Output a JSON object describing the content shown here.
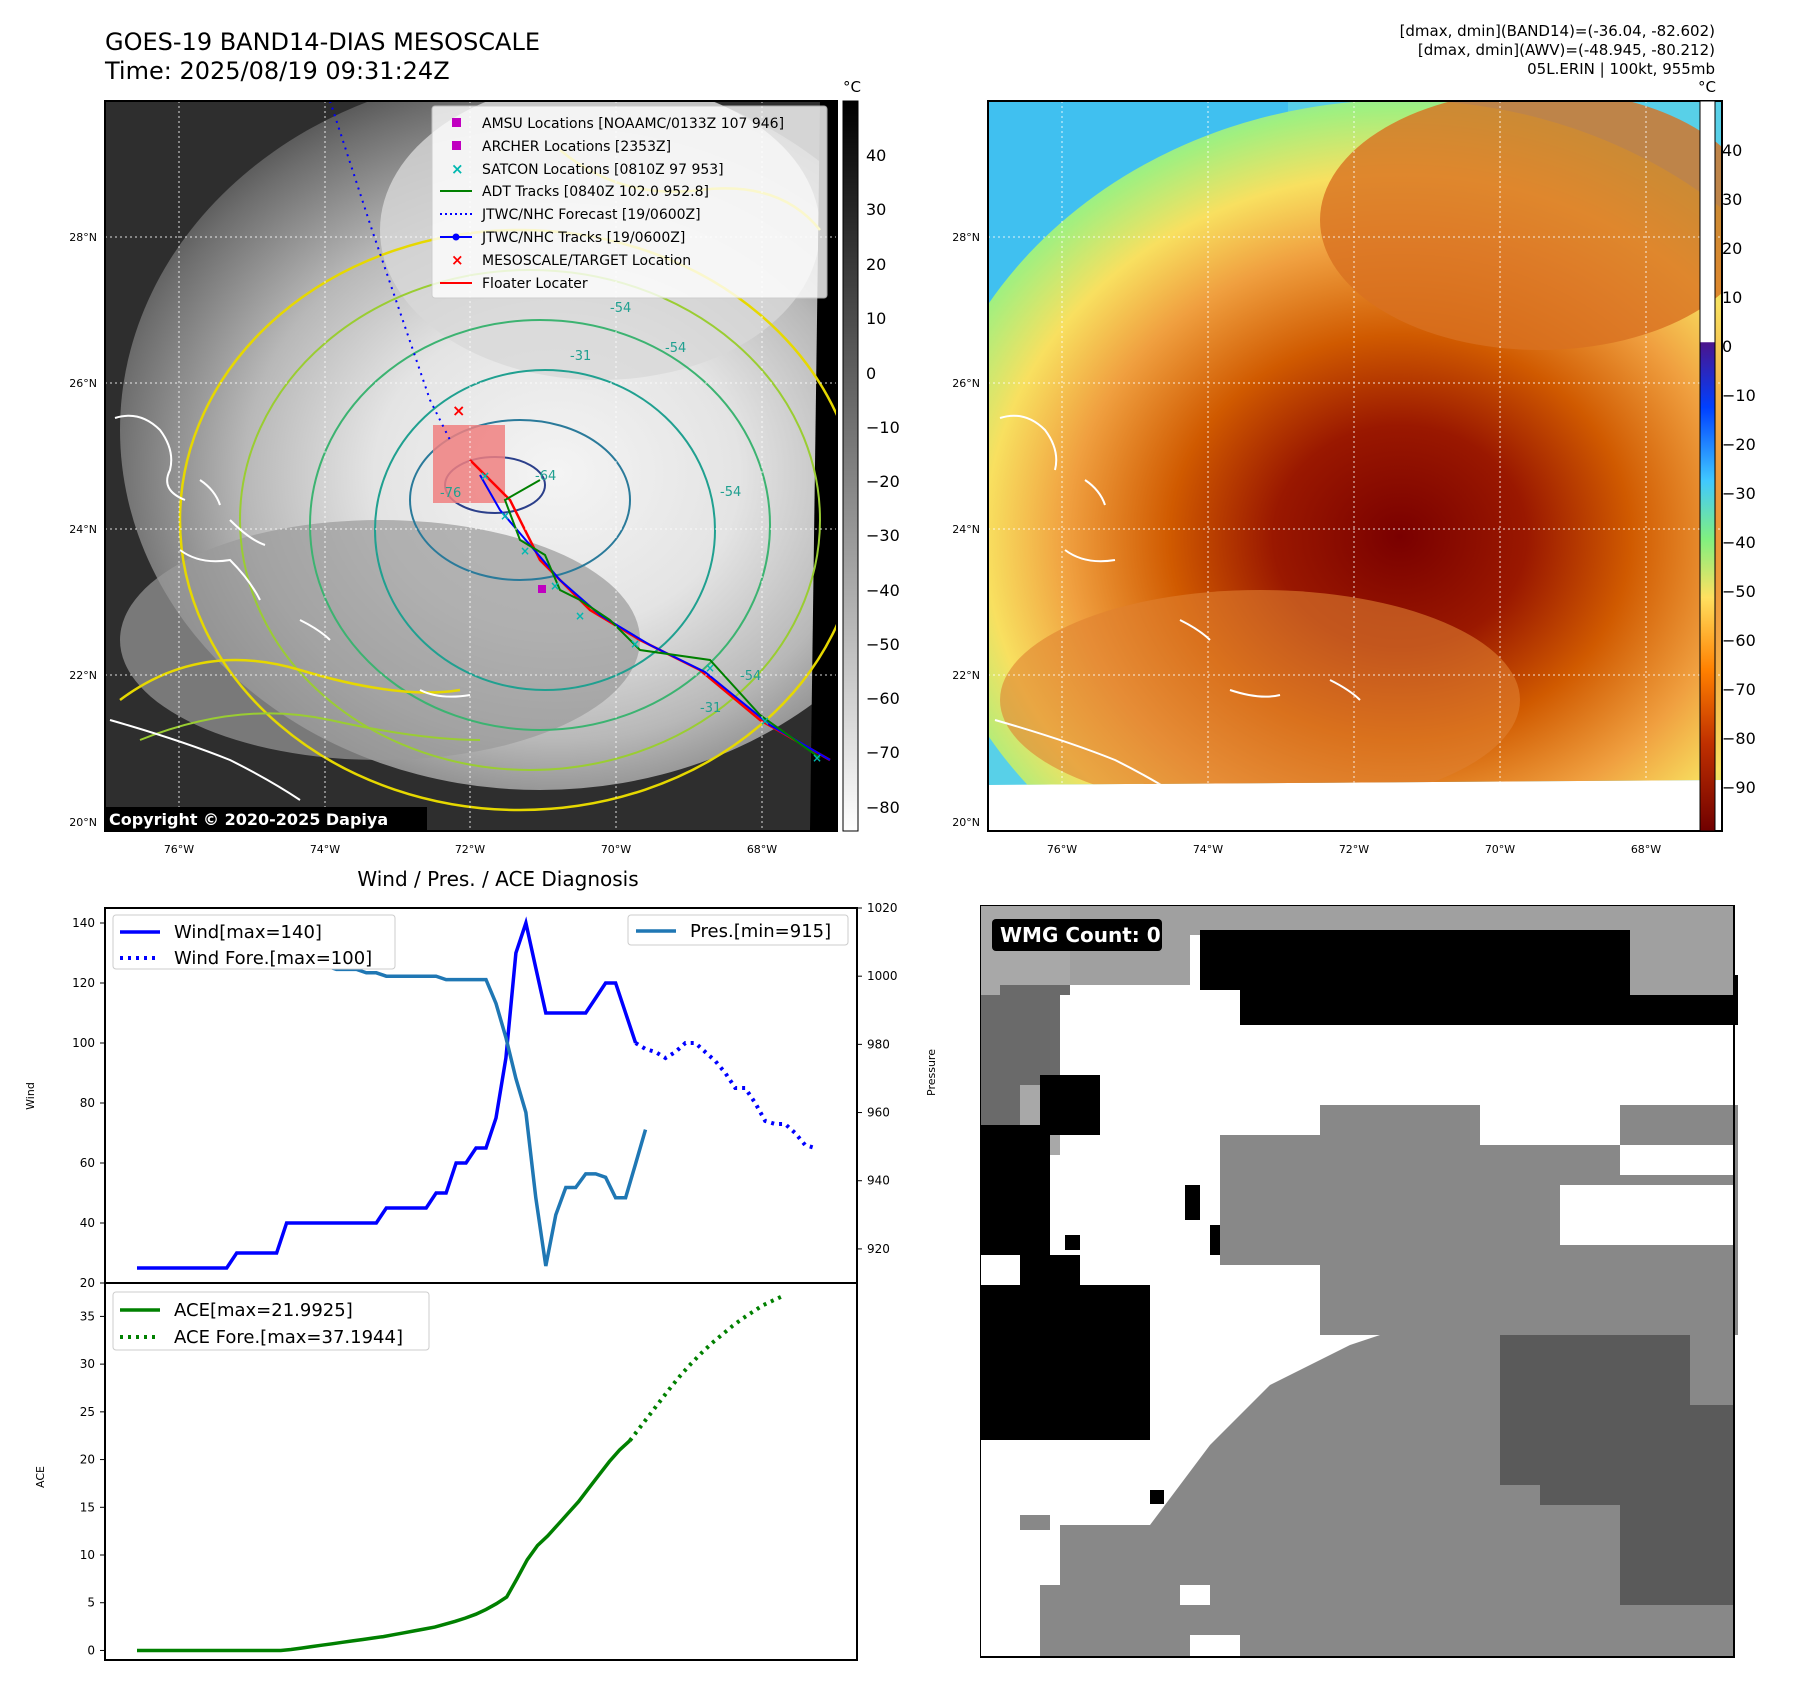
{
  "header": {
    "title_line1": "GOES-19 BAND14-DIAS MESOSCALE",
    "title_line2": "Time: 2025/08/19 09:31:24Z",
    "info_line1": "[dmax, dmin](BAND14)=(-36.04, -82.602)",
    "info_line2": "[dmax, dmin](AWV)=(-48.945, -80.212)",
    "info_line3": "05L.ERIN | 100kt, 955mb"
  },
  "map_left": {
    "unit": "°C",
    "copyright": "Copyright © 2020-2025 Dapiya",
    "lat_labels": [
      "28°N",
      "26°N",
      "24°N",
      "22°N",
      "20°N"
    ],
    "lon_labels": [
      "76°W",
      "74°W",
      "72°W",
      "70°W",
      "68°W"
    ],
    "colorbar_ticks": [
      "40",
      "30",
      "20",
      "10",
      "0",
      "−10",
      "−20",
      "−30",
      "−40",
      "−50",
      "−60",
      "−70",
      "−80"
    ],
    "contour_labels": [
      "-54",
      "-31",
      "-54",
      "-54",
      "-76",
      "-64",
      "-54",
      "-31"
    ],
    "legend": [
      {
        "label": "AMSU Locations [NOAAMC/0133Z 107 946]",
        "color": "#c000c0",
        "marker": "square"
      },
      {
        "label": "ARCHER Locations [2353Z]",
        "color": "#c000c0",
        "marker": "square"
      },
      {
        "label": "SATCON Locations [0810Z 97 953]",
        "color": "#00b8b0",
        "marker": "x"
      },
      {
        "label": "ADT Tracks [0840Z 102.0 952.8]",
        "color": "#008000",
        "marker": "line"
      },
      {
        "label": "JTWC/NHC Forecast [19/0600Z]",
        "color": "#0000ff",
        "marker": "dotted"
      },
      {
        "label": "JTWC/NHC Tracks [19/0600Z]",
        "color": "#0000ff",
        "marker": "line-dot"
      },
      {
        "label": "MESOSCALE/TARGET Location",
        "color": "#ff0000",
        "marker": "x"
      },
      {
        "label": "Floater Locater",
        "color": "#ff0000",
        "marker": "line"
      }
    ]
  },
  "map_right": {
    "unit": "°C",
    "lat_labels": [
      "28°N",
      "26°N",
      "24°N",
      "22°N",
      "20°N"
    ],
    "lon_labels": [
      "76°W",
      "74°W",
      "72°W",
      "70°W",
      "68°W"
    ],
    "colorbar_ticks": [
      "40",
      "30",
      "20",
      "10",
      "0",
      "−10",
      "−20",
      "−30",
      "−40",
      "−50",
      "−60",
      "−70",
      "−80",
      "−90"
    ]
  },
  "wmg": {
    "label": "WMG Count: 0"
  },
  "chart_data": [
    {
      "type": "line",
      "title": "Wind / Pres. / ACE Diagnosis",
      "ylabel": "Wind",
      "y2label": "Pressure",
      "ylim": [
        20,
        145
      ],
      "y2lim": [
        910,
        1020
      ],
      "yticks": [
        20,
        40,
        60,
        80,
        100,
        120,
        140
      ],
      "y2ticks": [
        920,
        940,
        960,
        980,
        1000,
        1020
      ],
      "legend_left": [
        "Wind[max=140]",
        "Wind Fore.[max=100]"
      ],
      "legend_right": [
        "Pres.[min=915]"
      ],
      "series": [
        {
          "name": "Wind[max=140]",
          "color": "#0000ff",
          "style": "solid",
          "axis": "left",
          "values": [
            25,
            25,
            25,
            25,
            25,
            25,
            25,
            25,
            25,
            25,
            30,
            30,
            30,
            30,
            30,
            40,
            40,
            40,
            40,
            40,
            40,
            40,
            40,
            40,
            40,
            45,
            45,
            45,
            45,
            45,
            50,
            50,
            60,
            60,
            65,
            65,
            75,
            95,
            130,
            140,
            125,
            110,
            110,
            110,
            110,
            110,
            115,
            120,
            120,
            110,
            100
          ]
        },
        {
          "name": "Wind Fore.[max=100]",
          "color": "#0000ff",
          "style": "dotted",
          "axis": "left",
          "start_index": 50,
          "values": [
            100,
            98,
            97,
            95,
            97,
            100,
            100,
            97,
            94,
            90,
            85,
            85,
            80,
            74,
            73,
            73,
            70,
            66,
            65
          ]
        },
        {
          "name": "Pres.[min=915]",
          "color": "#1f77b4",
          "style": "solid",
          "axis": "right",
          "values": [
            1012,
            1012,
            1012,
            1008,
            1008,
            1007,
            1007,
            1006,
            1006,
            1006,
            1006,
            1006,
            1005,
            1004,
            1004,
            1004,
            1004,
            1004,
            1003,
            1003,
            1002,
            1002,
            1002,
            1001,
            1001,
            1000,
            1000,
            1000,
            1000,
            1000,
            1000,
            999,
            999,
            999,
            999,
            999,
            992,
            982,
            970,
            960,
            935,
            915,
            930,
            938,
            938,
            942,
            942,
            941,
            935,
            935,
            945,
            955
          ]
        }
      ]
    },
    {
      "type": "line",
      "ylabel": "ACE",
      "ylim": [
        -1,
        38.5
      ],
      "yticks": [
        0,
        5,
        10,
        15,
        20,
        25,
        30,
        35
      ],
      "legend": [
        "ACE[max=21.9925]",
        "ACE Fore.[max=37.1944]"
      ],
      "series": [
        {
          "name": "ACE[max=21.9925]",
          "color": "#008000",
          "style": "solid",
          "values": [
            0,
            0,
            0,
            0,
            0,
            0,
            0,
            0,
            0,
            0,
            0,
            0,
            0,
            0,
            0,
            0.1,
            0.25,
            0.4,
            0.55,
            0.7,
            0.85,
            1.0,
            1.15,
            1.3,
            1.45,
            1.65,
            1.85,
            2.05,
            2.25,
            2.45,
            2.75,
            3.05,
            3.4,
            3.8,
            4.3,
            4.9,
            5.6,
            7.5,
            9.5,
            11.0,
            12.0,
            13.2,
            14.4,
            15.6,
            17.0,
            18.4,
            19.8,
            21.0,
            21.99
          ]
        },
        {
          "name": "ACE Fore.[max=37.1944]",
          "color": "#008000",
          "style": "dotted",
          "start_index": 48,
          "values": [
            21.99,
            23.4,
            24.8,
            26.2,
            27.6,
            28.9,
            30.1,
            31.2,
            32.2,
            33.1,
            34.0,
            34.8,
            35.5,
            36.2,
            36.7,
            37.19
          ]
        }
      ]
    }
  ]
}
